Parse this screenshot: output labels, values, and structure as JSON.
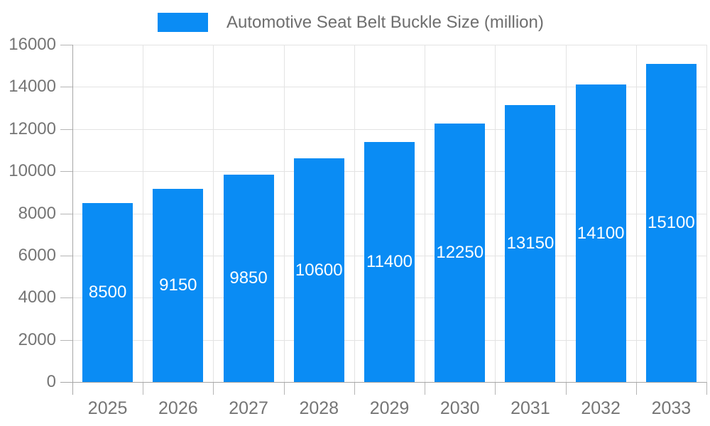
{
  "legend": {
    "label": "Automotive Seat Belt Buckle Size (million)"
  },
  "chart_data": {
    "type": "bar",
    "title": "Automotive Seat Belt Buckle Size (million)",
    "categories": [
      "2025",
      "2026",
      "2027",
      "2028",
      "2029",
      "2030",
      "2031",
      "2032",
      "2033"
    ],
    "values": [
      8500,
      9150,
      9850,
      10600,
      11400,
      12250,
      13150,
      14100,
      15100
    ],
    "xlabel": "",
    "ylabel": "",
    "ylim": [
      0,
      16000
    ],
    "yticks": [
      0,
      2000,
      4000,
      6000,
      8000,
      10000,
      12000,
      14000,
      16000
    ],
    "grid": true,
    "legend_position": "top",
    "colors": {
      "bar": "#0a8cf4",
      "value_label": "#ffffff",
      "axis_text": "#757575",
      "legend_text": "#6e6e6e",
      "grid_line": "#e3e3e3",
      "axis_line": "#a6a6a6",
      "tick_line": "#b5b5b5",
      "background": "#ffffff"
    }
  }
}
